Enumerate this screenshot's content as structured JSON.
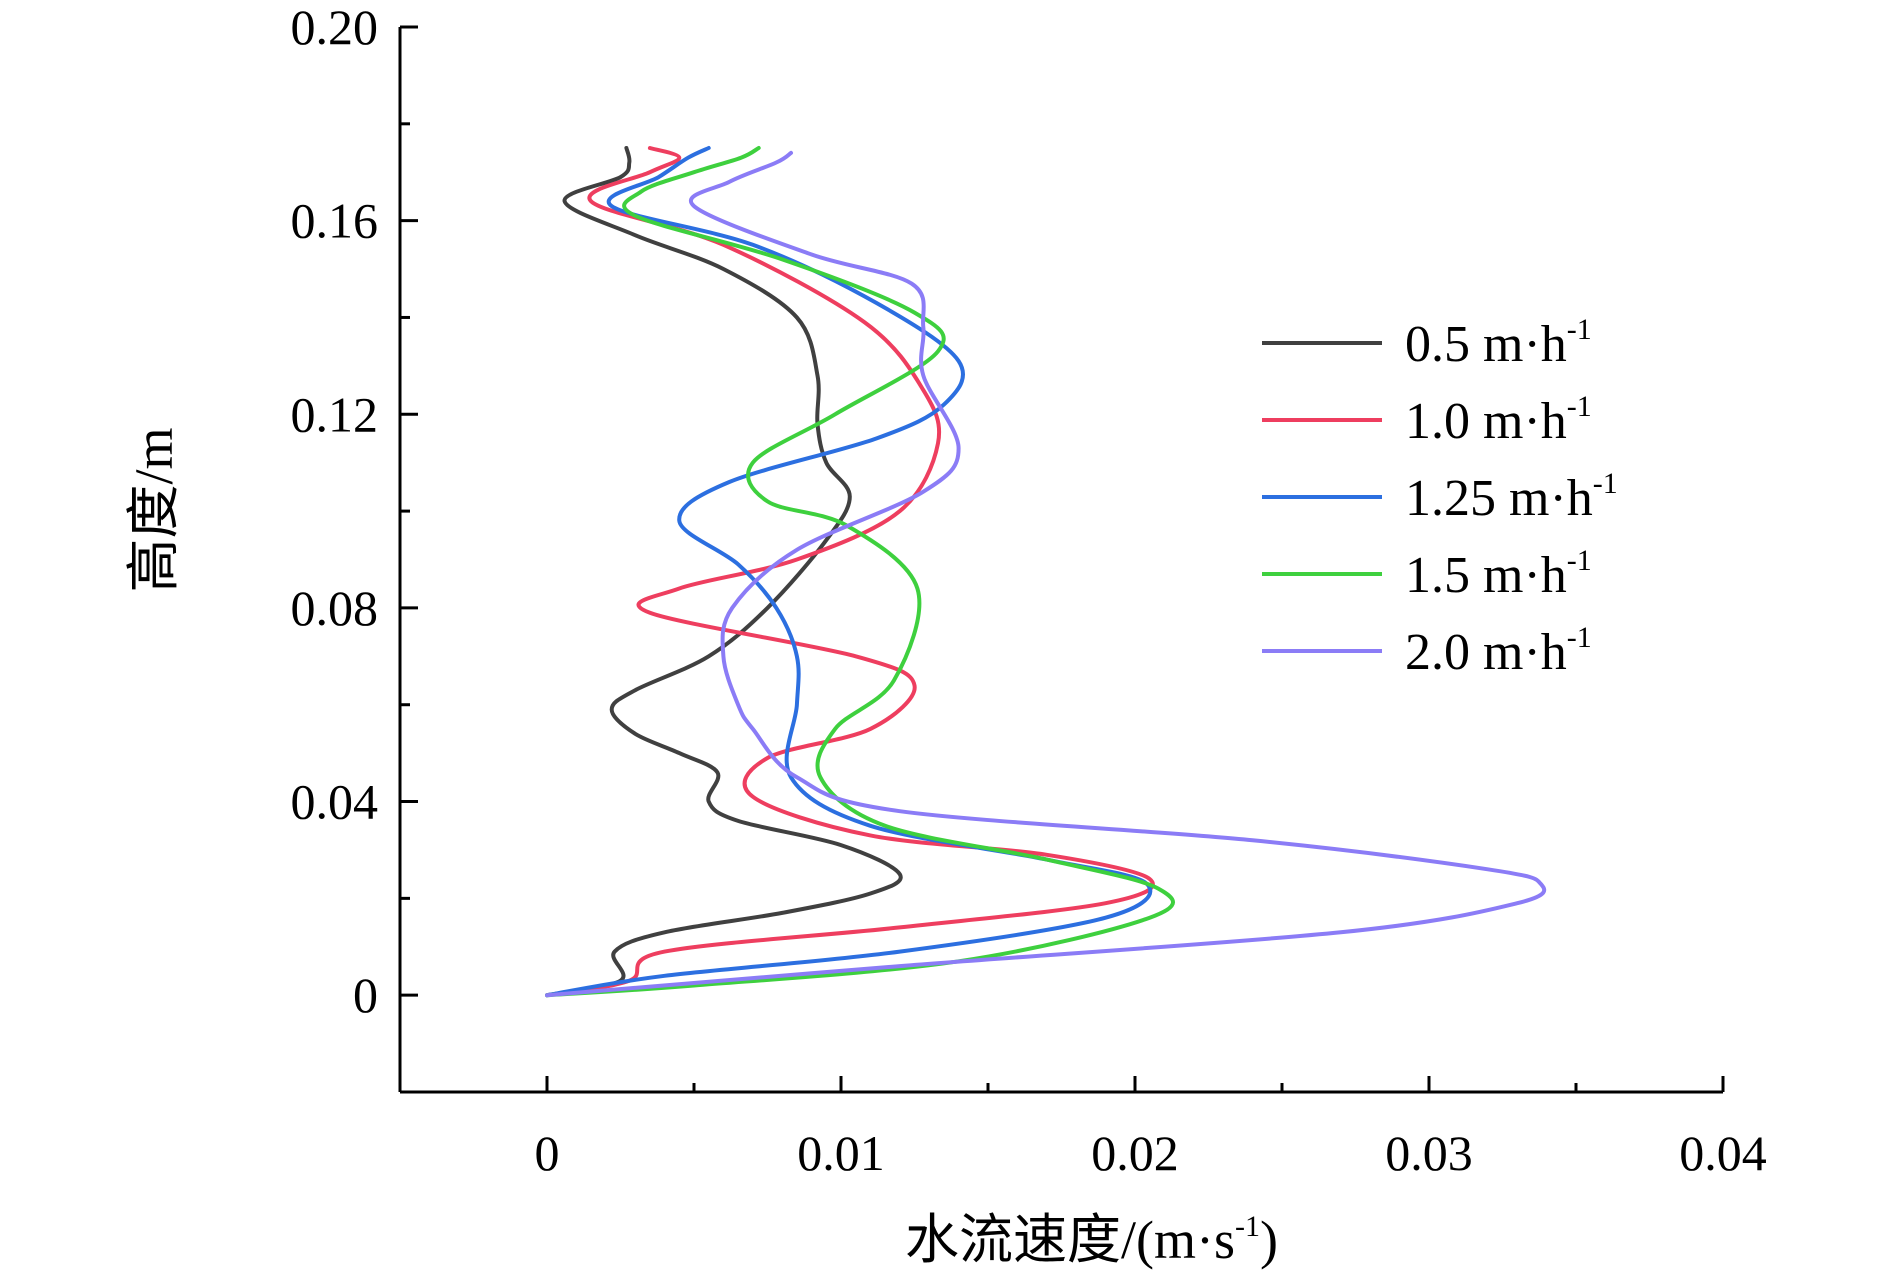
{
  "chart_data": {
    "type": "line",
    "orientation": "vertical-profile",
    "xlabel": "水流速度/(m·s",
    "xlabel_sup": "-1",
    "xlabel_end": ")",
    "ylabel": "高度/m",
    "xlim": [
      -0.005,
      0.04
    ],
    "ylim": [
      -0.02,
      0.2
    ],
    "x_ticks": [
      0,
      0.01,
      0.02,
      0.03,
      0.04
    ],
    "x_tick_labels": [
      "0",
      "0.01",
      "0.02",
      "0.03",
      "0.04"
    ],
    "y_ticks": [
      0,
      0.04,
      0.08,
      0.12,
      0.16,
      0.2
    ],
    "y_tick_labels": [
      "0",
      "0.04",
      "0.08",
      "0.12",
      "0.16",
      "0.20"
    ],
    "grid": false,
    "legend_position": "right-upper",
    "series": [
      {
        "name": "0.5 m·h",
        "name_sup": "-1",
        "color": "#404040",
        "points": [
          [
            0,
            0
          ],
          [
            0.0025,
            0.003
          ],
          [
            0.0023,
            0.009
          ],
          [
            0.004,
            0.013
          ],
          [
            0.008,
            0.017
          ],
          [
            0.011,
            0.021
          ],
          [
            0.012,
            0.025
          ],
          [
            0.01,
            0.031
          ],
          [
            0.0065,
            0.036
          ],
          [
            0.0055,
            0.04
          ],
          [
            0.0058,
            0.046
          ],
          [
            0.0045,
            0.05
          ],
          [
            0.003,
            0.054
          ],
          [
            0.0022,
            0.059
          ],
          [
            0.003,
            0.063
          ],
          [
            0.0055,
            0.07
          ],
          [
            0.0075,
            0.08
          ],
          [
            0.0095,
            0.094
          ],
          [
            0.0103,
            0.103
          ],
          [
            0.0095,
            0.11
          ],
          [
            0.0092,
            0.118
          ],
          [
            0.0092,
            0.128
          ],
          [
            0.0085,
            0.14
          ],
          [
            0.006,
            0.15
          ],
          [
            0.003,
            0.157
          ],
          [
            0.0006,
            0.164
          ],
          [
            0.0025,
            0.169
          ],
          [
            0.0028,
            0.172
          ],
          [
            0.0027,
            0.175
          ]
        ]
      },
      {
        "name": "1.0 m·h",
        "name_sup": "-1",
        "color": "#ee3e5f",
        "points": [
          [
            0,
            0
          ],
          [
            0.0028,
            0.003
          ],
          [
            0.004,
            0.009
          ],
          [
            0.012,
            0.014
          ],
          [
            0.019,
            0.019
          ],
          [
            0.0205,
            0.024
          ],
          [
            0.017,
            0.029
          ],
          [
            0.011,
            0.033
          ],
          [
            0.007,
            0.041
          ],
          [
            0.0075,
            0.049
          ],
          [
            0.011,
            0.055
          ],
          [
            0.0125,
            0.064
          ],
          [
            0.0105,
            0.07
          ],
          [
            0.0035,
            0.079
          ],
          [
            0.0045,
            0.084
          ],
          [
            0.0085,
            0.09
          ],
          [
            0.012,
            0.1
          ],
          [
            0.0133,
            0.114
          ],
          [
            0.0128,
            0.125
          ],
          [
            0.0108,
            0.139
          ],
          [
            0.006,
            0.155
          ],
          [
            0.0015,
            0.164
          ],
          [
            0.0035,
            0.17
          ],
          [
            0.0045,
            0.173
          ],
          [
            0.0035,
            0.175
          ]
        ]
      },
      {
        "name": "1.25 m·h",
        "name_sup": "-1",
        "color": "#2c6fe0",
        "points": [
          [
            0,
            0
          ],
          [
            0.004,
            0.004
          ],
          [
            0.012,
            0.009
          ],
          [
            0.019,
            0.016
          ],
          [
            0.0204,
            0.023
          ],
          [
            0.017,
            0.028
          ],
          [
            0.011,
            0.035
          ],
          [
            0.0083,
            0.045
          ],
          [
            0.0085,
            0.06
          ],
          [
            0.0085,
            0.07
          ],
          [
            0.0078,
            0.08
          ],
          [
            0.0065,
            0.089
          ],
          [
            0.0045,
            0.098
          ],
          [
            0.0062,
            0.106
          ],
          [
            0.0112,
            0.115
          ],
          [
            0.0135,
            0.122
          ],
          [
            0.014,
            0.131
          ],
          [
            0.0112,
            0.143
          ],
          [
            0.007,
            0.155
          ],
          [
            0.0022,
            0.163
          ],
          [
            0.0038,
            0.169
          ],
          [
            0.0048,
            0.173
          ],
          [
            0.0055,
            0.175
          ]
        ]
      },
      {
        "name": "1.5 m·h",
        "name_sup": "-1",
        "color": "#3ed03e",
        "points": [
          [
            0,
            0
          ],
          [
            0.005,
            0.002
          ],
          [
            0.014,
            0.007
          ],
          [
            0.0205,
            0.016
          ],
          [
            0.0208,
            0.022
          ],
          [
            0.017,
            0.028
          ],
          [
            0.0115,
            0.035
          ],
          [
            0.0093,
            0.045
          ],
          [
            0.0098,
            0.055
          ],
          [
            0.0118,
            0.065
          ],
          [
            0.0126,
            0.084
          ],
          [
            0.0102,
            0.097
          ],
          [
            0.0075,
            0.102
          ],
          [
            0.007,
            0.11
          ],
          [
            0.0098,
            0.12
          ],
          [
            0.0133,
            0.133
          ],
          [
            0.0125,
            0.141
          ],
          [
            0.008,
            0.152
          ],
          [
            0.003,
            0.161
          ],
          [
            0.0032,
            0.166
          ],
          [
            0.005,
            0.17
          ],
          [
            0.0066,
            0.173
          ],
          [
            0.0072,
            0.175
          ]
        ]
      },
      {
        "name": "2.0 m·h",
        "name_sup": "-1",
        "color": "#8b7cf6",
        "points": [
          [
            0,
            0
          ],
          [
            0.012,
            0.006
          ],
          [
            0.027,
            0.013
          ],
          [
            0.033,
            0.019
          ],
          [
            0.0338,
            0.023
          ],
          [
            0.032,
            0.026
          ],
          [
            0.024,
            0.032
          ],
          [
            0.012,
            0.038
          ],
          [
            0.0085,
            0.045
          ],
          [
            0.007,
            0.055
          ],
          [
            0.0065,
            0.06
          ],
          [
            0.006,
            0.07
          ],
          [
            0.0063,
            0.08
          ],
          [
            0.0085,
            0.092
          ],
          [
            0.0128,
            0.104
          ],
          [
            0.014,
            0.113
          ],
          [
            0.0128,
            0.128
          ],
          [
            0.0128,
            0.138
          ],
          [
            0.0124,
            0.147
          ],
          [
            0.009,
            0.153
          ],
          [
            0.005,
            0.163
          ],
          [
            0.0062,
            0.168
          ],
          [
            0.0078,
            0.172
          ],
          [
            0.0083,
            0.174
          ]
        ]
      }
    ]
  }
}
